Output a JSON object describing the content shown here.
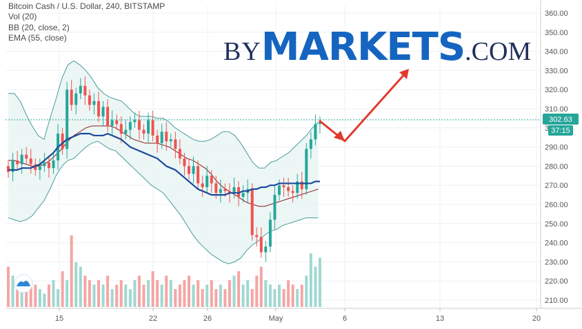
{
  "indicators": {
    "title": "Bitcoin Cash / U.S. Dollar, 240, BITSTAMP",
    "vol": "Vol (20)",
    "bb": "BB (20, close, 2)",
    "ema": "EMA (55, close)"
  },
  "brand": {
    "by": "BY",
    "markets": "MARKETS",
    "com": ".COM"
  },
  "price_badge": {
    "price": "302.63",
    "timer": "37:15"
  },
  "colors": {
    "up": "#26a69a",
    "down": "#ef5350",
    "ema": "#1b4a9a",
    "bb_band": "#4a9a9a",
    "bb_basis": "#8b1a1a",
    "arrow": "#e03a2e",
    "brand_blue": "#1565c0"
  },
  "icons": {
    "watermark": "tradingview-logo-icon"
  },
  "chart_data": {
    "type": "candlestick",
    "title": "Bitcoin Cash / U.S. Dollar, 240, BITSTAMP",
    "ylim": [
      205,
      363
    ],
    "yticks": [
      210,
      220,
      230,
      240,
      250,
      260,
      270,
      280,
      290,
      300,
      310,
      320,
      330,
      340,
      350,
      360
    ],
    "xtick_labels": [
      "15",
      "22",
      "26",
      "May",
      "6",
      "13",
      "20"
    ],
    "current_price": 302.63,
    "series": [
      {
        "name": "price",
        "open": [
          280,
          277,
          283,
          281,
          286,
          284,
          281,
          278,
          280,
          282,
          279,
          283,
          297,
          289,
          320,
          312,
          318,
          322,
          317,
          312,
          314,
          306,
          311,
          301,
          304,
          302,
          297,
          299,
          303,
          304,
          299,
          297,
          304,
          296,
          292,
          298,
          293,
          294,
          289,
          284,
          280,
          276,
          280,
          271,
          269,
          275,
          271,
          266,
          268,
          267,
          266,
          269,
          264,
          266,
          268,
          244,
          243,
          235,
          238,
          252,
          265,
          270,
          269,
          267,
          266,
          272,
          268,
          289,
          294,
          302
        ],
        "close": [
          277,
          283,
          281,
          286,
          284,
          281,
          278,
          280,
          282,
          279,
          283,
          297,
          289,
          320,
          312,
          318,
          322,
          317,
          312,
          314,
          306,
          311,
          301,
          304,
          302,
          297,
          299,
          303,
          304,
          299,
          297,
          304,
          296,
          292,
          298,
          293,
          294,
          289,
          284,
          280,
          276,
          280,
          271,
          269,
          275,
          271,
          266,
          268,
          267,
          266,
          269,
          264,
          266,
          268,
          244,
          243,
          235,
          238,
          252,
          265,
          270,
          269,
          267,
          266,
          272,
          268,
          289,
          294,
          302,
          303
        ]
      },
      {
        "name": "EMA (55, close)",
        "values": [
          278,
          278,
          278,
          279,
          279,
          279,
          280,
          281,
          283,
          285,
          287,
          290,
          292,
          294,
          295,
          296,
          297,
          297,
          297,
          296,
          296,
          296,
          297,
          296,
          295,
          294,
          292,
          290,
          289,
          288,
          287,
          286,
          285,
          284,
          282,
          280,
          279,
          278,
          276,
          274,
          272,
          270,
          268,
          267,
          266,
          265,
          265,
          265,
          265,
          266,
          266,
          266,
          267,
          267,
          268,
          268,
          269,
          269,
          270,
          270,
          271,
          271,
          271,
          271,
          271,
          271,
          271,
          271,
          272,
          272
        ]
      },
      {
        "name": "BB upper",
        "values": [
          318,
          318,
          314,
          307,
          301,
          296,
          294,
          305,
          315,
          326,
          333,
          335,
          333,
          330,
          326,
          321,
          318,
          316,
          315,
          314,
          311,
          308,
          306,
          306,
          306,
          305,
          305,
          303,
          300,
          298,
          296,
          294,
          293,
          293,
          294,
          296,
          298,
          298,
          296,
          292,
          287,
          282,
          279,
          279,
          282,
          283,
          285,
          287,
          290,
          293,
          296,
          300,
          303
        ]
      },
      {
        "name": "BB basis",
        "values": [
          283,
          283,
          282,
          281,
          280,
          280,
          281,
          283,
          286,
          289,
          293,
          296,
          298,
          300,
          301,
          301,
          301,
          301,
          300,
          298,
          296,
          294,
          293,
          292,
          292,
          292,
          291,
          290,
          288,
          286,
          284,
          283,
          281,
          279,
          276,
          272,
          269,
          267,
          265,
          263,
          261,
          260,
          259,
          259,
          260,
          261,
          262,
          263,
          264,
          265,
          266,
          267,
          268
        ]
      },
      {
        "name": "BB lower",
        "values": [
          253,
          252,
          251,
          252,
          254,
          258,
          262,
          268,
          275,
          280,
          283,
          284,
          287,
          290,
          292,
          293,
          291,
          289,
          288,
          285,
          282,
          279,
          276,
          273,
          270,
          268,
          266,
          262,
          258,
          254,
          249,
          244,
          240,
          237,
          234,
          232,
          230,
          229,
          230,
          232,
          236,
          239,
          241,
          244,
          246,
          247,
          249,
          250,
          251,
          252,
          253,
          253,
          253
        ]
      },
      {
        "name": "Vol (20)",
        "values": [
          9,
          7,
          6,
          5,
          4,
          6,
          5,
          4,
          3,
          5,
          6,
          4,
          8,
          6,
          16,
          10,
          9,
          7,
          6,
          5,
          6,
          5,
          7,
          4,
          5,
          6,
          5,
          4,
          6,
          7,
          5,
          6,
          8,
          6,
          5,
          7,
          6,
          4,
          5,
          6,
          7,
          5,
          6,
          4,
          5,
          6,
          4,
          5,
          4,
          6,
          7,
          8,
          5,
          6,
          4,
          7,
          9,
          6,
          5,
          4,
          5,
          4,
          6,
          5,
          4,
          5,
          7,
          12,
          9,
          11
        ]
      }
    ]
  }
}
